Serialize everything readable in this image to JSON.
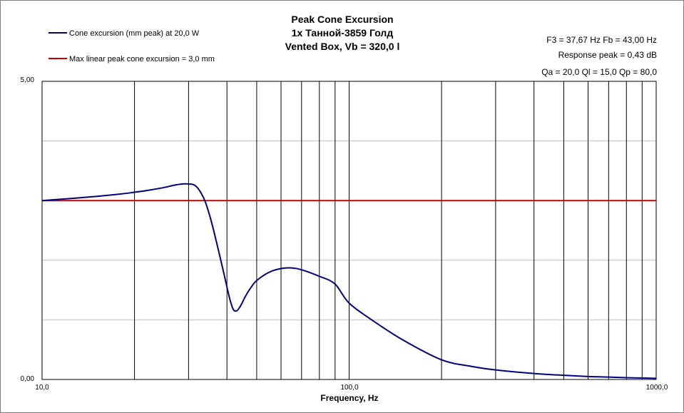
{
  "header": {
    "title_line1": "Peak Cone Excursion",
    "title_line2": "1x Танной-3859 Голд",
    "title_line3": "Vented Box, Vb = 320,0 l"
  },
  "info": {
    "line1": "F3 = 37,67  Hz   Fb = 43,00  Hz",
    "line2": "Response peak = 0,43 dB",
    "line3": "Qa = 20,0   Ql = 15,0   Qp = 80,0"
  },
  "colors": {
    "excursion": "#000080",
    "max_linear": "#cc0000",
    "grid": "#000000",
    "hgrid": "#c0c0c0"
  },
  "chart_data": {
    "type": "line",
    "xlabel": "Frequency, Hz",
    "ylabel": "",
    "xscale": "log",
    "xlim": [
      10,
      1000
    ],
    "ylim": [
      0,
      5
    ],
    "x_tick_labels": [
      "10,0",
      "100,0",
      "1000,0"
    ],
    "y_tick_labels": [
      "0,00",
      "5,00"
    ],
    "x_gridlines": [
      20,
      30,
      40,
      50,
      60,
      70,
      80,
      90,
      100,
      200,
      300,
      400,
      500,
      600,
      700,
      800,
      900
    ],
    "y_gridlines": [
      1,
      2,
      3,
      4
    ],
    "legend_position": "top-left",
    "series": [
      {
        "name": "Cone excursion (mm peak) at 20,0 W",
        "x": [
          10,
          12,
          15,
          18,
          20,
          22,
          25,
          27,
          29,
          31,
          32,
          33,
          34,
          35,
          36,
          37,
          38,
          39,
          40,
          41,
          42,
          43,
          44,
          45,
          46,
          48,
          50,
          55,
          60,
          65,
          70,
          80,
          90,
          100,
          120,
          150,
          200,
          250,
          300,
          400,
          500,
          600,
          700,
          800,
          1000
        ],
        "y": [
          3.0,
          3.03,
          3.07,
          3.11,
          3.14,
          3.17,
          3.22,
          3.26,
          3.28,
          3.27,
          3.22,
          3.12,
          2.98,
          2.78,
          2.55,
          2.3,
          2.05,
          1.8,
          1.55,
          1.32,
          1.17,
          1.15,
          1.21,
          1.3,
          1.4,
          1.55,
          1.66,
          1.8,
          1.86,
          1.87,
          1.84,
          1.73,
          1.6,
          1.28,
          0.98,
          0.66,
          0.33,
          0.22,
          0.16,
          0.1,
          0.07,
          0.05,
          0.04,
          0.03,
          0.02
        ]
      },
      {
        "name": "Max linear peak cone excursion = 3,0 mm",
        "x": [
          10,
          1000
        ],
        "y": [
          3.0,
          3.0
        ]
      }
    ]
  }
}
